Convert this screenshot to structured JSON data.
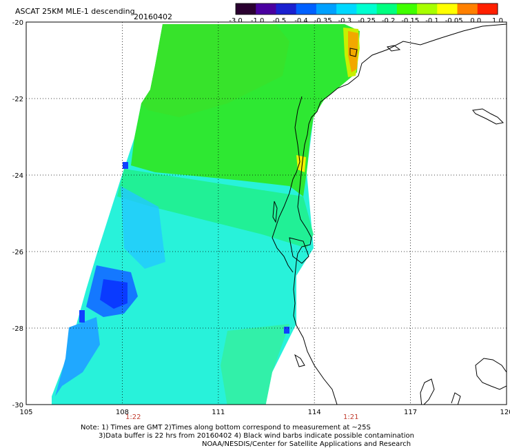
{
  "title": "ASCAT 25KM MLE-1 descending",
  "date": "20160402",
  "colorbar": {
    "labels": [
      "-3.0",
      "-1.0",
      "-0.5",
      "-0.4",
      "-0.35",
      "-0.3",
      "-0.25",
      "-0.2",
      "-0.15",
      "-0.1",
      "-0.05",
      "0.0",
      "1.0"
    ],
    "colors": [
      "#2a0030",
      "#4a00a0",
      "#1a20d0",
      "#0060ff",
      "#00a0ff",
      "#00d8ff",
      "#00ffd0",
      "#00ff80",
      "#40ff00",
      "#a8ff00",
      "#ffff00",
      "#ff8000",
      "#ff2000"
    ]
  },
  "axes": {
    "lon_labels": [
      "105",
      "108",
      "111",
      "114",
      "117",
      "120"
    ],
    "lat_labels": [
      "-20",
      "-22",
      "-24",
      "-26",
      "-28",
      "-30"
    ],
    "lon_range": [
      105,
      120
    ],
    "lat_range": [
      -30,
      -20
    ],
    "grid": "dotted"
  },
  "times": [
    "1:22",
    "1:21"
  ],
  "notes": [
    "Note: 1) Times are GMT 2)Times along bottom correspond to measurement at ~25S",
    "3)Data buffer is 22 hrs from 20160402 4) Black wind barbs indicate possible contamination",
    "NOAA/NESDIS/Center for Satellite Applications and Research"
  ]
}
